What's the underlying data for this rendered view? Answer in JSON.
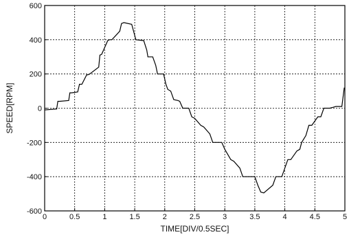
{
  "chart_data": {
    "type": "line",
    "xlabel": "TIME[DIV/0.5SEC]",
    "ylabel": "SPEED[RPM]",
    "xlim": [
      0,
      5
    ],
    "ylim": [
      -600,
      600
    ],
    "x_ticks": [
      0,
      0.5,
      1,
      1.5,
      2,
      2.5,
      3,
      3.5,
      4,
      4.5,
      5
    ],
    "x_tick_labels": [
      "0",
      "0.5",
      "1",
      "1.5",
      "2",
      "2.5",
      "3",
      "3.5",
      "4",
      "4.5",
      "5"
    ],
    "y_ticks": [
      -600,
      -400,
      -200,
      0,
      200,
      400,
      600
    ],
    "y_tick_labels": [
      "-600",
      "-400",
      "-200",
      "0",
      "200",
      "400",
      "600"
    ],
    "grid": true,
    "series": [
      {
        "color": "#000000",
        "x": [
          0,
          0.2,
          0.22,
          0.25,
          0.4,
          0.42,
          0.45,
          0.55,
          0.58,
          0.62,
          0.7,
          0.72,
          0.75,
          0.9,
          0.92,
          0.95,
          1.05,
          1.08,
          1.12,
          1.25,
          1.28,
          1.32,
          1.45,
          1.48,
          1.52,
          1.65,
          1.7,
          1.72,
          1.8,
          1.85,
          1.88,
          1.98,
          2.02,
          2.05,
          2.1,
          2.15,
          2.22,
          2.25,
          2.3,
          2.4,
          2.45,
          2.5,
          2.6,
          2.65,
          2.75,
          2.8,
          2.95,
          3.0,
          3.1,
          3.15,
          3.25,
          3.3,
          3.5,
          3.55,
          3.6,
          3.65,
          3.8,
          3.85,
          3.95,
          4.0,
          4.05,
          4.1,
          4.2,
          4.25,
          4.28,
          4.35,
          4.4,
          4.45,
          4.55,
          4.6,
          4.65,
          4.75,
          4.8,
          4.85,
          4.95,
          4.99
        ],
        "values": [
          -10,
          -5,
          40,
          40,
          45,
          90,
          90,
          95,
          140,
          140,
          195,
          195,
          200,
          240,
          310,
          315,
          395,
          400,
          400,
          450,
          495,
          500,
          490,
          450,
          400,
          395,
          340,
          300,
          300,
          250,
          200,
          200,
          140,
          110,
          100,
          50,
          45,
          40,
          0,
          0,
          -50,
          -60,
          -100,
          -110,
          -150,
          -200,
          -200,
          -240,
          -300,
          -310,
          -350,
          -400,
          -400,
          -450,
          -490,
          -495,
          -450,
          -400,
          -400,
          -350,
          -300,
          -300,
          -250,
          -240,
          -200,
          -160,
          -100,
          -100,
          -50,
          -50,
          0,
          0,
          5,
          10,
          10,
          120
        ]
      }
    ]
  }
}
